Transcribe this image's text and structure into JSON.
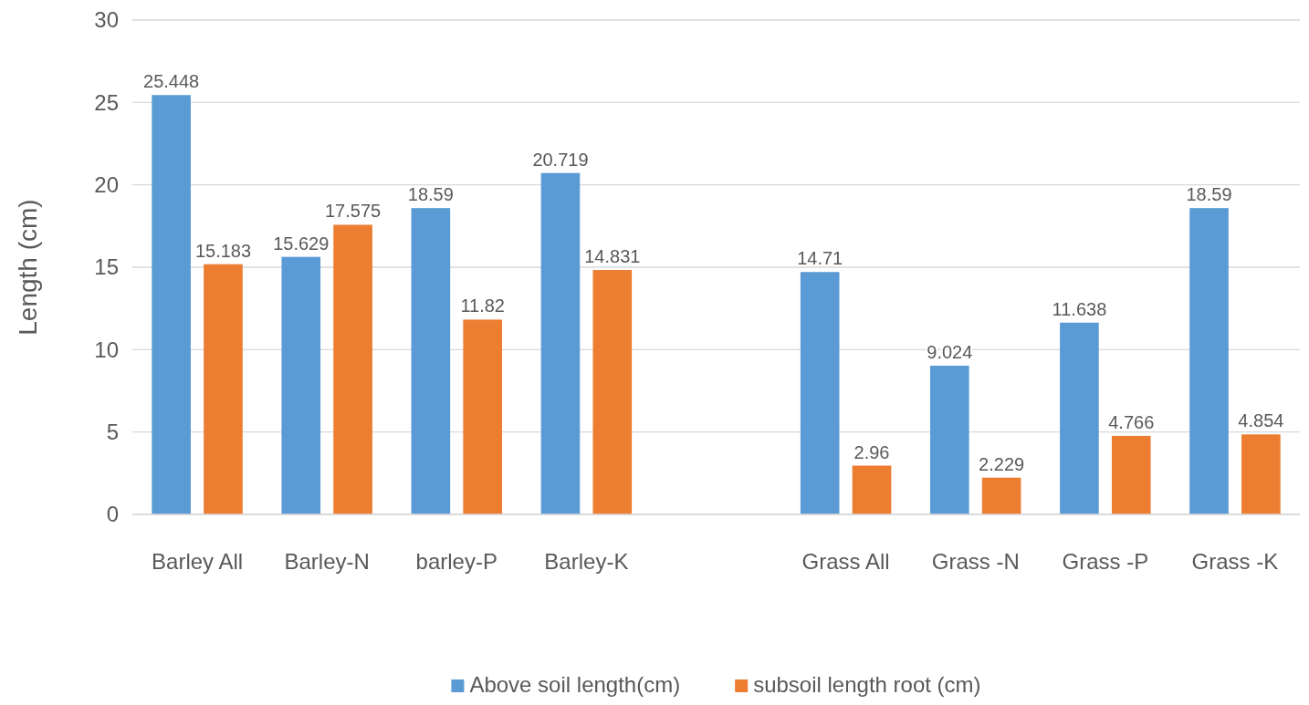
{
  "chart_data": {
    "type": "bar",
    "ylabel": "Length (cm)",
    "categories": [
      "Barley All",
      "Barley-N",
      "barley-P",
      "Barley-K",
      null,
      "Grass All",
      "Grass -N",
      "Grass -P",
      "Grass -K"
    ],
    "series": [
      {
        "name": "Above soil length(cm)",
        "color": "#5b9bd5",
        "values": [
          25.448,
          15.629,
          18.59,
          20.719,
          null,
          14.71,
          9.024,
          11.638,
          18.59
        ]
      },
      {
        "name": "subsoil length root (cm)",
        "color": "#ed7d31",
        "values": [
          15.183,
          17.575,
          11.82,
          14.831,
          null,
          2.96,
          2.229,
          4.766,
          4.854
        ]
      }
    ],
    "ylim": [
      0,
      30
    ],
    "yticks": [
      0,
      5,
      10,
      15,
      20,
      25,
      30
    ],
    "grid": "y",
    "legend": "bottom",
    "data_labels": true
  }
}
